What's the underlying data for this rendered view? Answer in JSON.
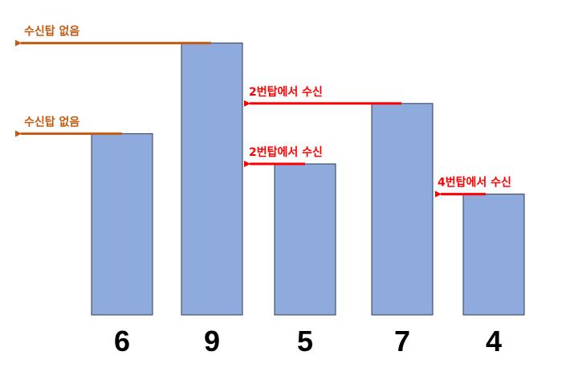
{
  "towers": [
    {
      "height": 6
    },
    {
      "height": 9
    },
    {
      "height": 5
    },
    {
      "height": 7
    },
    {
      "height": 4
    }
  ],
  "signals": [
    {
      "label": "수신탑 없음"
    },
    {
      "label": "수신탑 없음"
    },
    {
      "label": "2번탑에서 수신"
    },
    {
      "label": "2번탑에서 수신"
    },
    {
      "label": "4번탑에서 수신"
    }
  ]
}
